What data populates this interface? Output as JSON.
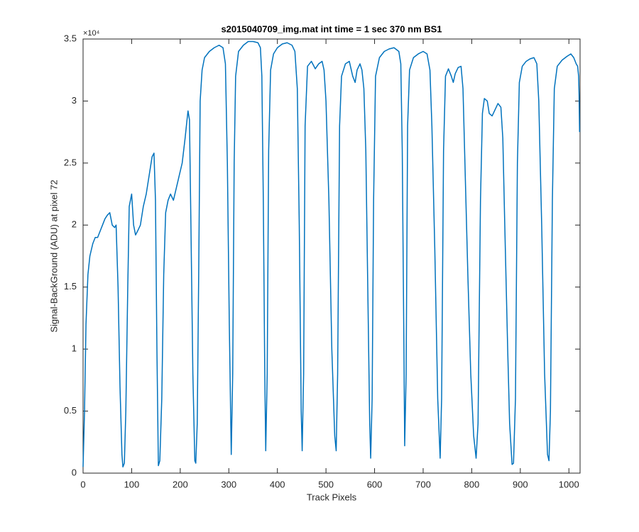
{
  "chart_data": {
    "type": "line",
    "title": "s2015040709_img.mat int time = 1 sec  370 nm BS1",
    "x_label": "Track Pixels",
    "y_label": "Signal-BackGround (ADU) at pixel 72",
    "y_exponent_label": "×10⁴",
    "xlim": [
      0,
      1023
    ],
    "ylim": [
      0,
      35000
    ],
    "xticks": [
      0,
      100,
      200,
      300,
      400,
      500,
      600,
      700,
      800,
      900,
      1000
    ],
    "yticks": [
      0,
      {
        "value": 5000,
        "label": "0.5"
      },
      {
        "value": 10000,
        "label": "1"
      },
      {
        "value": 15000,
        "label": "1.5"
      },
      {
        "value": 20000,
        "label": "2"
      },
      {
        "value": 25000,
        "label": "2.5"
      },
      {
        "value": 30000,
        "label": "3"
      },
      {
        "value": 35000,
        "label": "3.5"
      }
    ],
    "series": [
      {
        "color": "#0072bd",
        "x": [
          0,
          3,
          6,
          10,
          14,
          20,
          25,
          30,
          35,
          40,
          45,
          50,
          55,
          60,
          65,
          68,
          72,
          76,
          80,
          82,
          85,
          88,
          92,
          95,
          100,
          104,
          108,
          112,
          118,
          124,
          130,
          136,
          142,
          146,
          149,
          152,
          155,
          158,
          162,
          166,
          170,
          175,
          180,
          186,
          192,
          198,
          204,
          210,
          214,
          216,
          219,
          222,
          226,
          230,
          232,
          235,
          238,
          241,
          245,
          250,
          260,
          270,
          280,
          288,
          293,
          297,
          301,
          305,
          308,
          311,
          314,
          320,
          330,
          340,
          350,
          360,
          365,
          368,
          371,
          374,
          376,
          379,
          382,
          386,
          392,
          400,
          410,
          420,
          430,
          436,
          441,
          445,
          449,
          451,
          454,
          457,
          462,
          470,
          478,
          485,
          492,
          496,
          500,
          506,
          512,
          518,
          521,
          524,
          528,
          532,
          540,
          548,
          555,
          560,
          564,
          570,
          574,
          578,
          582,
          586,
          590,
          592,
          595,
          598,
          602,
          610,
          620,
          630,
          640,
          650,
          654,
          657,
          660,
          662,
          665,
          668,
          672,
          680,
          690,
          700,
          708,
          714,
          718,
          724,
          730,
          735,
          738,
          742,
          746,
          752,
          758,
          762,
          766,
          772,
          778,
          782,
          786,
          792,
          798,
          804,
          809,
          813,
          818,
          822,
          826,
          832,
          836,
          842,
          848,
          854,
          860,
          864,
          868,
          874,
          878,
          883,
          886,
          890,
          894,
          898,
          904,
          912,
          920,
          928,
          934,
          938,
          944,
          950,
          956,
          959,
          962,
          966,
          970,
          976,
          986,
          996,
          1004,
          1010,
          1015,
          1018,
          1020,
          1021,
          1022
        ],
        "values": [
          500,
          5000,
          12000,
          16000,
          17500,
          18500,
          19000,
          19000,
          19500,
          20000,
          20500,
          20800,
          21000,
          20000,
          19800,
          20000,
          15000,
          7000,
          1500,
          500,
          800,
          5000,
          15000,
          21500,
          22500,
          20000,
          19200,
          19500,
          20000,
          21500,
          22500,
          24000,
          25500,
          25800,
          22000,
          10000,
          600,
          1000,
          6000,
          16000,
          21000,
          22000,
          22500,
          22000,
          23000,
          24000,
          25000,
          27000,
          28500,
          29200,
          28500,
          20000,
          8000,
          1000,
          800,
          4000,
          16000,
          30000,
          32500,
          33500,
          34000,
          34300,
          34500,
          34300,
          33000,
          25000,
          12000,
          1500,
          8000,
          25000,
          32000,
          34000,
          34500,
          34800,
          34800,
          34700,
          34300,
          32000,
          22000,
          8000,
          1800,
          8000,
          26000,
          32500,
          33800,
          34300,
          34600,
          34700,
          34500,
          34000,
          31000,
          20000,
          5000,
          1800,
          8000,
          28000,
          32800,
          33200,
          32600,
          33000,
          33200,
          32500,
          30000,
          22000,
          10000,
          3000,
          1800,
          8000,
          28000,
          32000,
          33000,
          33200,
          32000,
          31500,
          32500,
          33000,
          32500,
          31000,
          26000,
          15000,
          4000,
          1200,
          6000,
          22000,
          32000,
          33500,
          34000,
          34200,
          34300,
          34000,
          33000,
          26000,
          12000,
          2200,
          8000,
          28000,
          32500,
          33500,
          33800,
          34000,
          33800,
          32500,
          28000,
          18000,
          6000,
          1200,
          6000,
          26000,
          32000,
          32600,
          32000,
          31500,
          32200,
          32700,
          32800,
          31000,
          25000,
          16000,
          8000,
          3000,
          1200,
          4000,
          22000,
          29000,
          30200,
          30000,
          29000,
          28800,
          29300,
          29800,
          29500,
          27000,
          20000,
          10000,
          4000,
          700,
          800,
          6000,
          25000,
          31500,
          32800,
          33200,
          33400,
          33500,
          33000,
          30000,
          20000,
          8000,
          1500,
          1000,
          5000,
          22000,
          31000,
          32800,
          33300,
          33600,
          33800,
          33500,
          33000,
          32800,
          32000,
          30500,
          27500
        ]
      }
    ]
  }
}
